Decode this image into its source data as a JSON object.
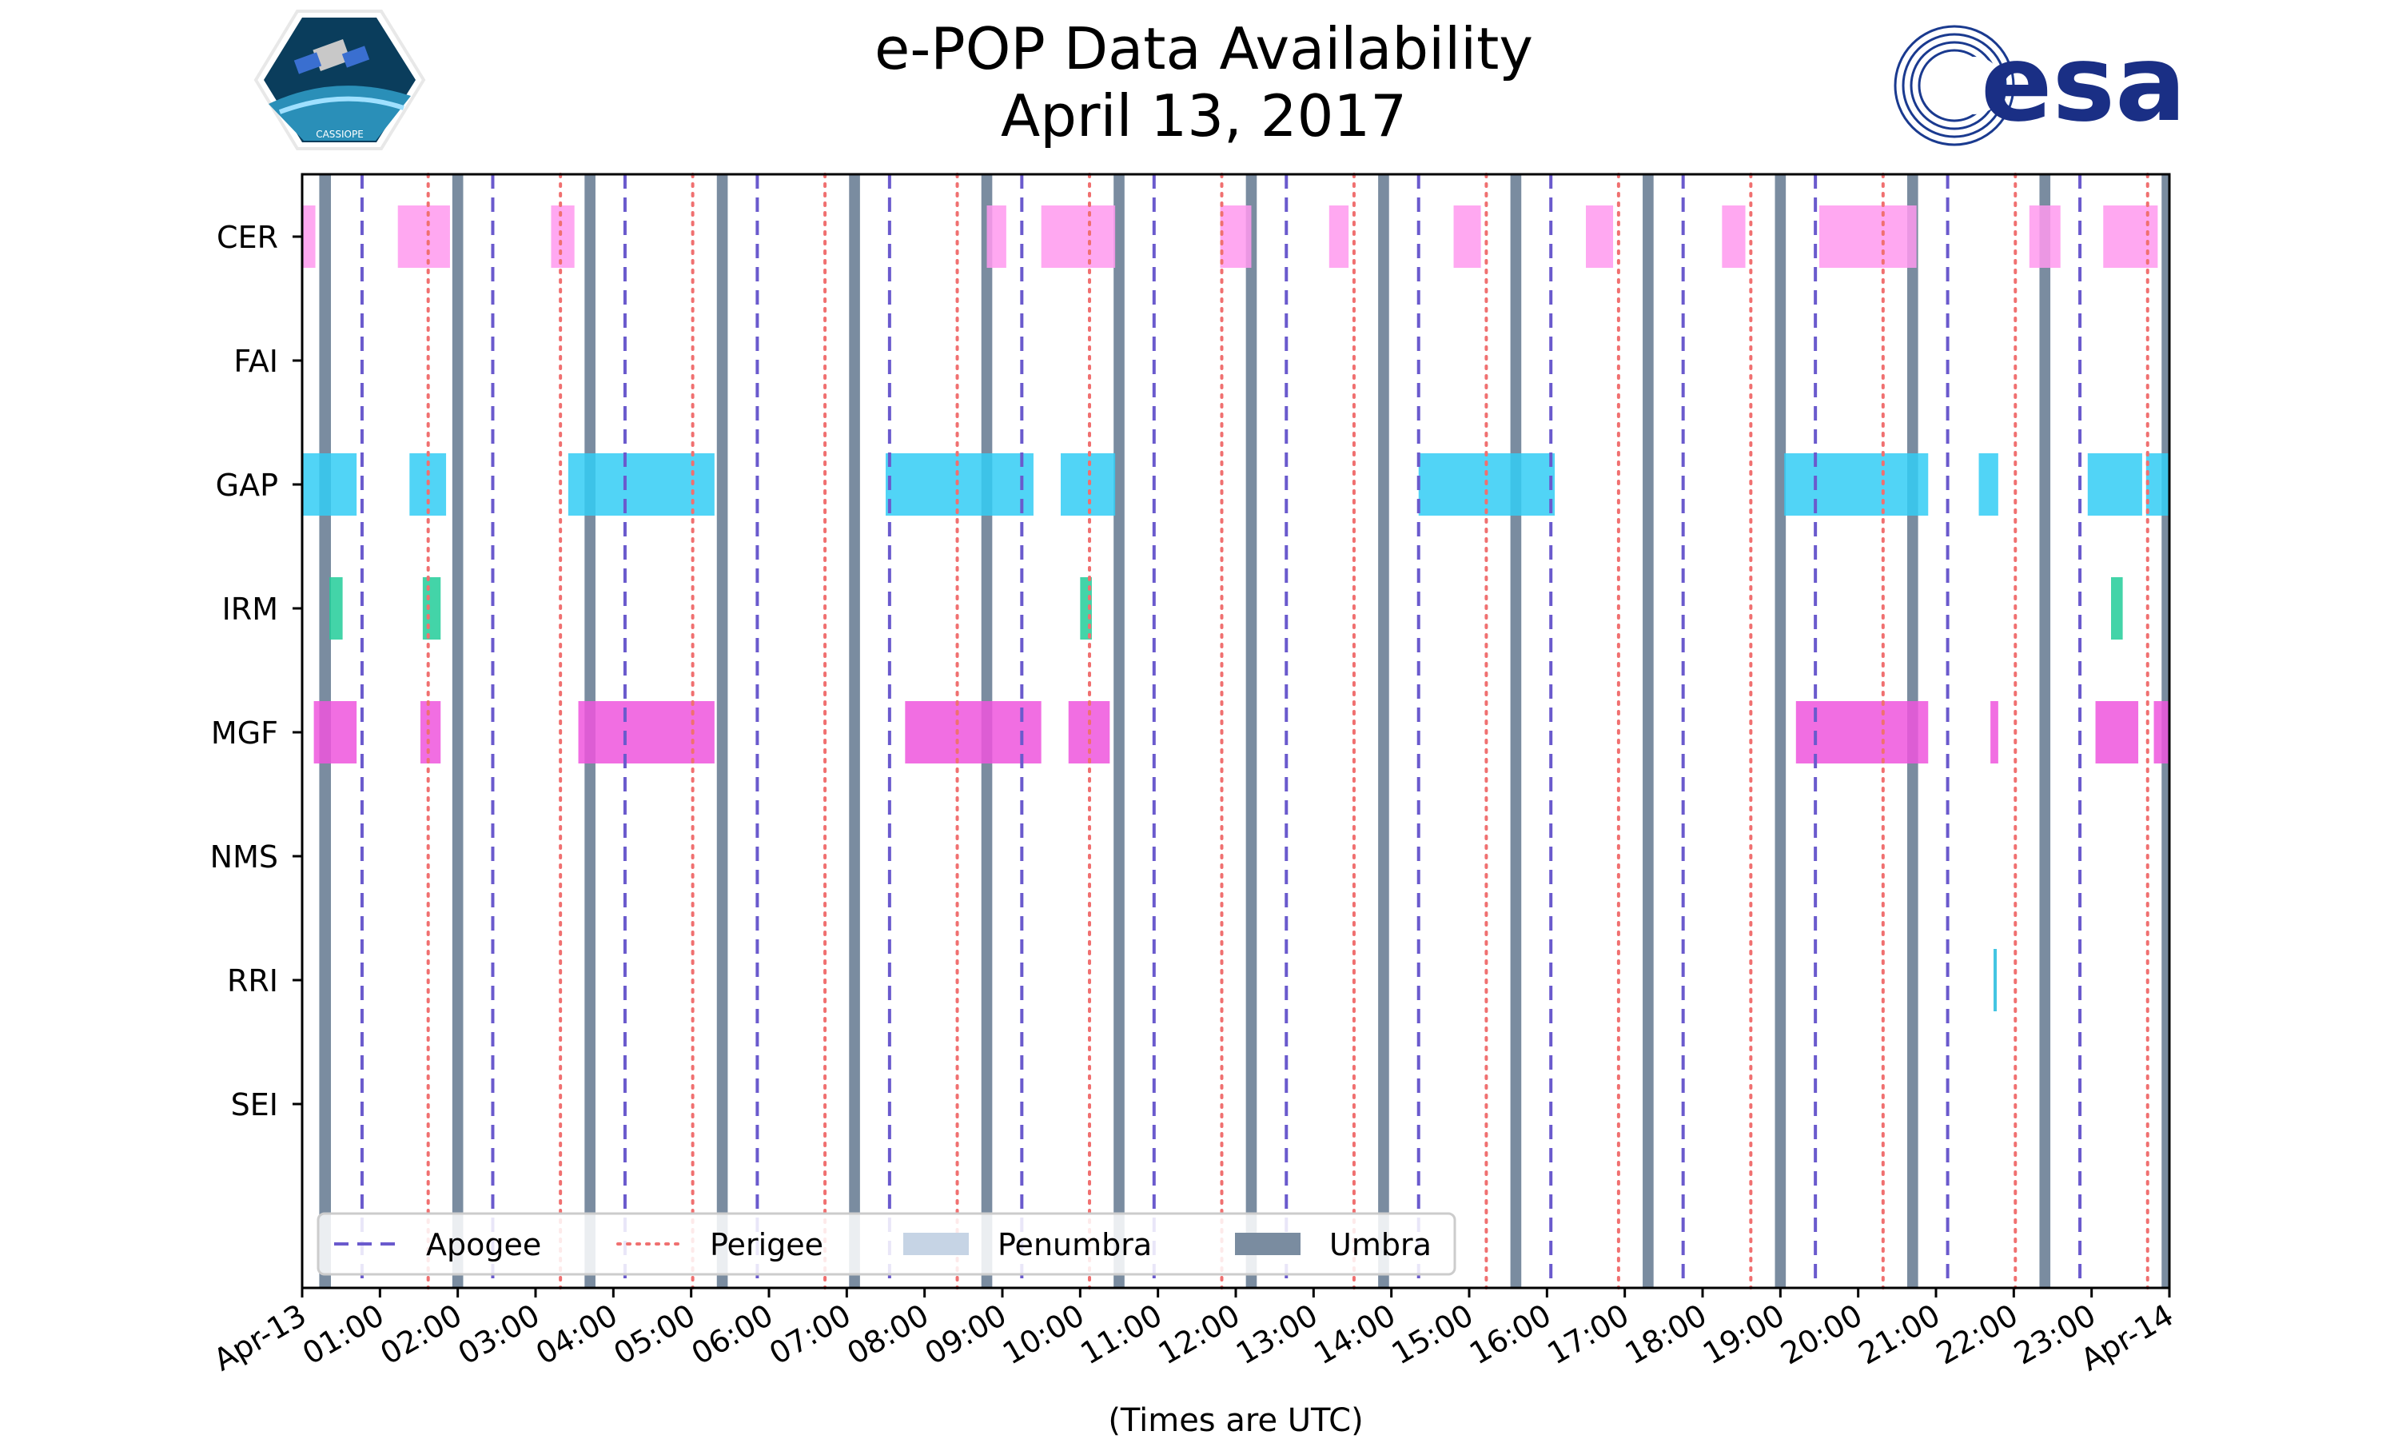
{
  "chart_data": {
    "type": "timeline",
    "title": "e-POP Data Availability",
    "subtitle": "April 13, 2017",
    "xlabel": "(Times are UTC)",
    "x_range_hours": [
      0,
      24
    ],
    "x_ticks": [
      "Apr-13",
      "01:00",
      "02:00",
      "03:00",
      "04:00",
      "05:00",
      "06:00",
      "07:00",
      "08:00",
      "09:00",
      "10:00",
      "11:00",
      "12:00",
      "13:00",
      "14:00",
      "15:00",
      "16:00",
      "17:00",
      "18:00",
      "19:00",
      "20:00",
      "21:00",
      "22:00",
      "23:00",
      "Apr-14"
    ],
    "instruments": [
      "CER",
      "FAI",
      "GAP",
      "IRM",
      "MGF",
      "NMS",
      "RRI",
      "SEI"
    ],
    "colors": {
      "CER": "#ff99ee",
      "GAP": "#33ccf5",
      "IRM": "#22cc99",
      "MGF": "#ee55dd",
      "RRI": "#22bbdd",
      "apogee": "#6a5acd",
      "perigee": "#f07070",
      "penumbra": "#c6d4e5",
      "umbra": "#7a8ca0"
    },
    "apogee_hours": [
      0.77,
      2.45,
      4.15,
      5.85,
      7.55,
      9.25,
      10.95,
      12.65,
      14.35,
      16.05,
      17.75,
      19.45,
      21.15,
      22.85
    ],
    "perigee_hours": [
      1.62,
      3.32,
      5.02,
      6.72,
      8.42,
      10.12,
      11.82,
      13.52,
      15.22,
      16.92,
      18.62,
      20.32,
      22.02,
      23.72
    ],
    "umbra_hours": [
      [
        0.22,
        0.37
      ],
      [
        1.93,
        2.07
      ],
      [
        3.63,
        3.77
      ],
      [
        5.33,
        5.47
      ],
      [
        7.03,
        7.17
      ],
      [
        8.73,
        8.87
      ],
      [
        10.43,
        10.57
      ],
      [
        12.13,
        12.27
      ],
      [
        13.83,
        13.97
      ],
      [
        15.53,
        15.67
      ],
      [
        17.23,
        17.37
      ],
      [
        18.93,
        19.07
      ],
      [
        20.63,
        20.77
      ],
      [
        22.33,
        22.47
      ],
      [
        23.9,
        24.0
      ]
    ],
    "data_hours": {
      "CER": [
        [
          0.0,
          0.17
        ],
        [
          1.23,
          1.9
        ],
        [
          3.2,
          3.5
        ],
        [
          8.8,
          9.05
        ],
        [
          9.5,
          10.45
        ],
        [
          11.8,
          12.2
        ],
        [
          13.2,
          13.45
        ],
        [
          14.8,
          15.15
        ],
        [
          16.5,
          16.85
        ],
        [
          18.25,
          18.55
        ],
        [
          19.5,
          20.75
        ],
        [
          22.2,
          22.6
        ],
        [
          23.15,
          23.85
        ]
      ],
      "FAI": [],
      "GAP": [
        [
          0.0,
          0.7
        ],
        [
          1.38,
          1.85
        ],
        [
          3.42,
          5.3
        ],
        [
          7.5,
          9.4
        ],
        [
          9.75,
          10.45
        ],
        [
          14.35,
          16.1
        ],
        [
          19.05,
          20.9
        ],
        [
          21.55,
          21.8
        ],
        [
          22.95,
          23.65
        ],
        [
          23.7,
          24.0
        ]
      ],
      "IRM": [
        [
          0.35,
          0.52
        ],
        [
          1.55,
          1.78
        ],
        [
          10.0,
          10.15
        ],
        [
          23.25,
          23.4
        ]
      ],
      "MGF": [
        [
          0.15,
          0.7
        ],
        [
          1.52,
          1.78
        ],
        [
          3.55,
          5.3
        ],
        [
          7.75,
          9.5
        ],
        [
          9.85,
          10.38
        ],
        [
          19.2,
          20.9
        ],
        [
          21.7,
          21.8
        ],
        [
          23.05,
          23.6
        ],
        [
          23.8,
          24.0
        ]
      ],
      "NMS": [],
      "RRI": [
        [
          21.74,
          21.78
        ]
      ],
      "SEI": []
    },
    "legend": {
      "position": "bottom-left",
      "items": [
        {
          "label": "Apogee",
          "kind": "apogee"
        },
        {
          "label": "Perigee",
          "kind": "perigee"
        },
        {
          "label": "Penumbra",
          "kind": "penumbra"
        },
        {
          "label": "Umbra",
          "kind": "umbra"
        }
      ]
    }
  },
  "logos": {
    "left": {
      "name": "cassiope-logo",
      "text": "CASSIOPE"
    },
    "right": {
      "name": "esa-logo",
      "text": "esa"
    }
  }
}
